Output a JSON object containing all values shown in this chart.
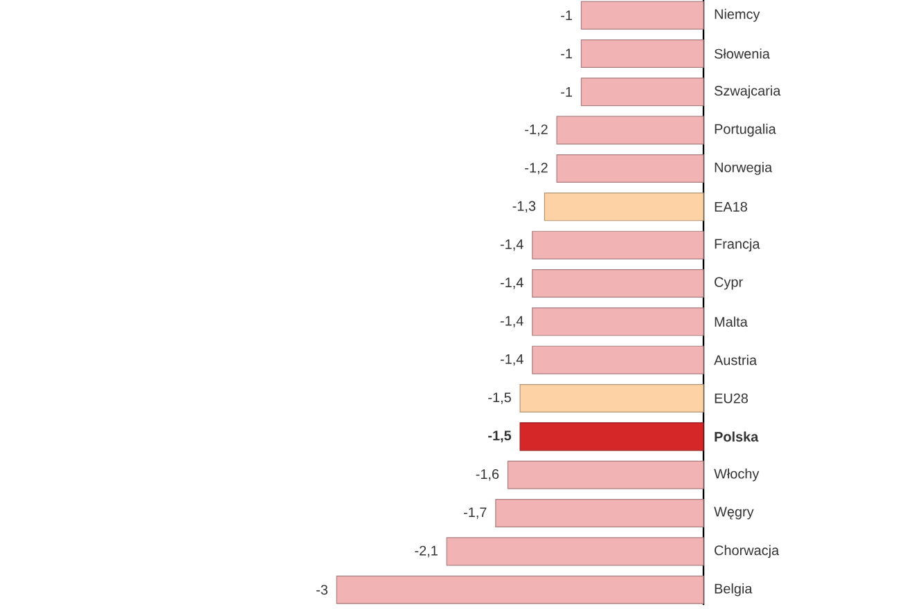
{
  "chart_data": {
    "type": "bar",
    "orientation": "horizontal",
    "categories": [
      "Niemcy",
      "Słowenia",
      "Szwajcaria",
      "Portugalia",
      "Norwegia",
      "EA18",
      "Francja",
      "Cypr",
      "Malta",
      "Austria",
      "EU28",
      "**Polska**",
      "Włochy",
      "Węgry",
      "Chorwacja",
      "Belgia"
    ],
    "values": [
      -1,
      -1,
      -1,
      -1.2,
      -1.2,
      -1.3,
      -1.4,
      -1.4,
      -1.4,
      -1.4,
      -1.5,
      -1.5,
      -1.6,
      -1.7,
      -2.1,
      -3
    ],
    "value_labels": [
      "-1",
      "-1",
      "-1",
      "-1,2",
      "-1,2",
      "-1,3",
      "-1,4",
      "-1,4",
      "-1,4",
      "-1,4",
      "-1,5",
      "**-1,5**",
      "-1,6",
      "-1,7",
      "-2,1",
      "-3"
    ],
    "colors": [
      "#f2b3b5",
      "#f2b3b5",
      "#f2b3b5",
      "#f2b3b5",
      "#f2b3b5",
      "#fdd3a6",
      "#f2b3b5",
      "#f2b3b5",
      "#f2b3b5",
      "#f2b3b5",
      "#fdd3a6",
      "#d62728",
      "#f2b3b5",
      "#f2b3b5",
      "#f2b3b5",
      "#f2b3b5"
    ],
    "tick_labels": "y"
  }
}
